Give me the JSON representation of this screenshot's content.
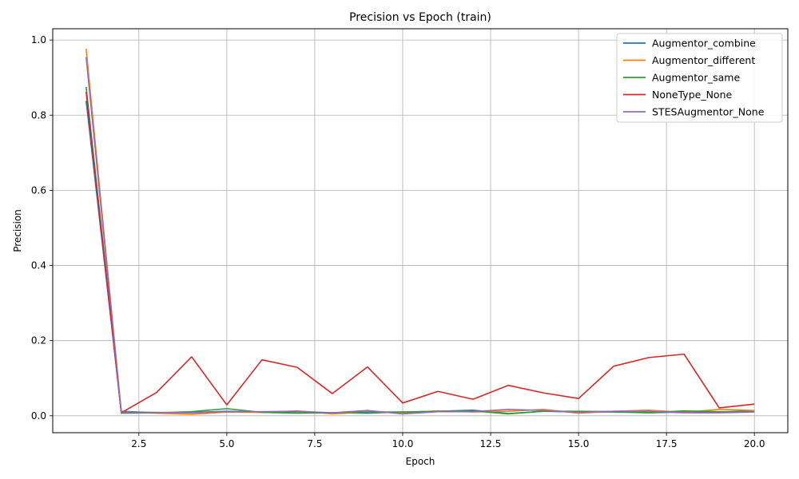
{
  "chart_data": {
    "type": "line",
    "title": "Precision vs Epoch (train)",
    "xlabel": "Epoch",
    "ylabel": "Precision",
    "xlim": [
      0.05,
      20.95
    ],
    "ylim": [
      -0.045,
      1.03
    ],
    "xticks": [
      2.5,
      5.0,
      7.5,
      10.0,
      12.5,
      15.0,
      17.5,
      20.0
    ],
    "xtick_labels": [
      "2.5",
      "5.0",
      "7.5",
      "10.0",
      "12.5",
      "15.0",
      "17.5",
      "20.0"
    ],
    "yticks": [
      0.0,
      0.2,
      0.4,
      0.6,
      0.8,
      1.0
    ],
    "ytick_labels": [
      "0.0",
      "0.2",
      "0.4",
      "0.6",
      "0.8",
      "1.0"
    ],
    "grid": true,
    "legend_position": "top-right",
    "x": [
      1,
      2,
      3,
      4,
      5,
      6,
      7,
      8,
      9,
      10,
      11,
      12,
      13,
      14,
      15,
      16,
      17,
      18,
      19,
      20
    ],
    "series": [
      {
        "name": "Augmentor_combine",
        "color": "#1f77b4",
        "values": [
          0.838,
          0.012,
          0.008,
          0.009,
          0.012,
          0.01,
          0.008,
          0.008,
          0.007,
          0.01,
          0.012,
          0.015,
          0.006,
          0.012,
          0.01,
          0.01,
          0.008,
          0.01,
          0.01,
          0.013
        ]
      },
      {
        "name": "Augmentor_different",
        "color": "#ff7f0e",
        "values": [
          0.977,
          0.01,
          0.007,
          0.004,
          0.01,
          0.009,
          0.013,
          0.005,
          0.01,
          0.008,
          0.013,
          0.01,
          0.012,
          0.017,
          0.007,
          0.012,
          0.015,
          0.009,
          0.017,
          0.014
        ]
      },
      {
        "name": "Augmentor_same",
        "color": "#2ca02c",
        "values": [
          0.875,
          0.007,
          0.008,
          0.011,
          0.019,
          0.009,
          0.007,
          0.008,
          0.01,
          0.01,
          0.012,
          0.013,
          0.005,
          0.012,
          0.012,
          0.011,
          0.008,
          0.013,
          0.011,
          0.011
        ]
      },
      {
        "name": "NoneType_None",
        "color": "#d62728",
        "values": [
          0.862,
          0.008,
          0.062,
          0.157,
          0.029,
          0.149,
          0.129,
          0.059,
          0.13,
          0.034,
          0.065,
          0.044,
          0.081,
          0.061,
          0.046,
          0.132,
          0.155,
          0.164,
          0.021,
          0.031
        ]
      },
      {
        "name": "STESAugmentor_None",
        "color": "#9467bd",
        "values": [
          0.955,
          0.009,
          0.009,
          0.008,
          0.011,
          0.011,
          0.012,
          0.008,
          0.014,
          0.005,
          0.011,
          0.011,
          0.017,
          0.014,
          0.009,
          0.012,
          0.012,
          0.008,
          0.008,
          0.01
        ]
      }
    ]
  }
}
